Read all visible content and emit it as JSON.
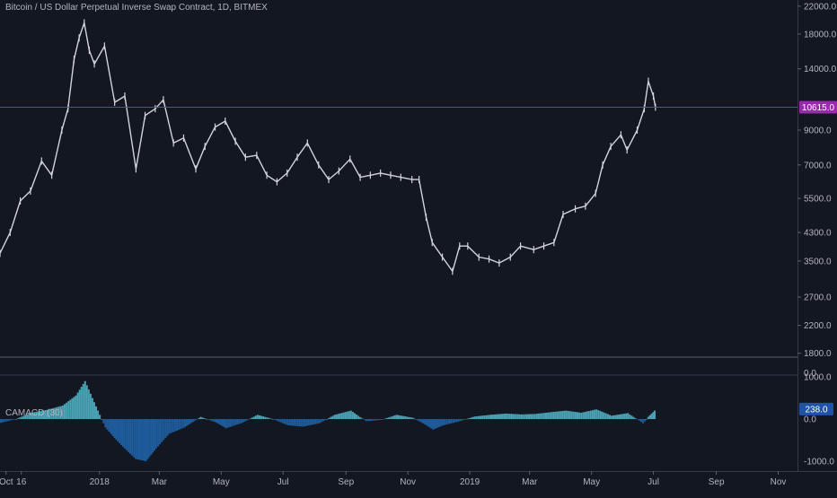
{
  "header": {
    "title": "Bitcoin / US Dollar Perpetual Inverse Swap Contract, 1D, BITMEX"
  },
  "indicator": {
    "label": "CAMACD (30)",
    "last_value_label": "238.0"
  },
  "price_line": {
    "value": 10615.0,
    "label": "10615.0",
    "color": "#9c27b0"
  },
  "colors": {
    "background": "#131722",
    "axis_text": "#b2b5be",
    "candle": "#d1d4dc",
    "hist_positive": "#4aa3b4",
    "hist_negative": "#1e5b9a",
    "hist_light": "#5bb0c0",
    "hist_badge": "#1e53a8"
  },
  "chart_data": [
    {
      "type": "line",
      "scale": "log",
      "ylim": [
        1750,
        23000
      ],
      "xlim": [
        "2017-09-25",
        "2019-11-20"
      ],
      "y_ticks": [
        {
          "value": 22000,
          "label": "22000.0"
        },
        {
          "value": 18000,
          "label": "18000.0"
        },
        {
          "value": 14000,
          "label": "14000.0"
        },
        {
          "value": 9000,
          "label": "9000.0"
        },
        {
          "value": 7000,
          "label": "7000.0"
        },
        {
          "value": 5500,
          "label": "5500.0"
        },
        {
          "value": 4300,
          "label": "4300.0"
        },
        {
          "value": 3500,
          "label": "3500.0"
        },
        {
          "value": 2700,
          "label": "2700.0"
        },
        {
          "value": 2200,
          "label": "2200.0"
        },
        {
          "value": 1800,
          "label": "1800.0"
        }
      ],
      "x_ticks": [
        {
          "date": "2017-10-01",
          "label": "Oct"
        },
        {
          "date": "2017-10-16",
          "label": "16"
        },
        {
          "date": "2018-01-01",
          "label": "2018"
        },
        {
          "date": "2018-03-01",
          "label": "Mar"
        },
        {
          "date": "2018-05-01",
          "label": "May"
        },
        {
          "date": "2018-07-01",
          "label": "Jul"
        },
        {
          "date": "2018-09-01",
          "label": "Sep"
        },
        {
          "date": "2018-11-01",
          "label": "Nov"
        },
        {
          "date": "2019-01-01",
          "label": "2019"
        },
        {
          "date": "2019-03-01",
          "label": "Mar"
        },
        {
          "date": "2019-05-01",
          "label": "May"
        },
        {
          "date": "2019-07-01",
          "label": "Jul"
        },
        {
          "date": "2019-09-01",
          "label": "Sep"
        },
        {
          "date": "2019-11-01",
          "label": "Nov"
        }
      ],
      "series": [
        {
          "x": [
            "2017-09-25",
            "2017-10-05",
            "2017-10-15",
            "2017-10-25",
            "2017-11-05",
            "2017-11-15",
            "2017-11-25",
            "2017-12-01",
            "2017-12-07",
            "2017-12-12",
            "2017-12-17",
            "2017-12-22",
            "2017-12-27",
            "2018-01-06",
            "2018-01-16",
            "2018-01-26",
            "2018-02-06",
            "2018-02-15",
            "2018-02-25",
            "2018-03-05",
            "2018-03-15",
            "2018-03-25",
            "2018-04-06",
            "2018-04-15",
            "2018-04-25",
            "2018-05-05",
            "2018-05-15",
            "2018-05-25",
            "2018-06-05",
            "2018-06-15",
            "2018-06-25",
            "2018-07-05",
            "2018-07-15",
            "2018-07-25",
            "2018-08-05",
            "2018-08-15",
            "2018-08-25",
            "2018-09-05",
            "2018-09-15",
            "2018-09-25",
            "2018-10-05",
            "2018-10-15",
            "2018-10-25",
            "2018-11-05",
            "2018-11-12",
            "2018-11-19",
            "2018-11-25",
            "2018-12-05",
            "2018-12-15",
            "2018-12-22",
            "2018-12-30",
            "2019-01-10",
            "2019-01-20",
            "2019-01-30",
            "2019-02-10",
            "2019-02-20",
            "2019-03-05",
            "2019-03-15",
            "2019-03-25",
            "2019-04-03",
            "2019-04-15",
            "2019-04-25",
            "2019-05-05",
            "2019-05-12",
            "2019-05-20",
            "2019-05-30",
            "2019-06-05",
            "2019-06-15",
            "2019-06-22",
            "2019-06-26",
            "2019-07-01",
            "2019-07-03"
          ],
          "y": [
            3700,
            4300,
            5400,
            5800,
            7200,
            6500,
            9000,
            10500,
            15000,
            17500,
            19500,
            16000,
            14500,
            16500,
            11000,
            11500,
            6800,
            10000,
            10500,
            11200,
            8200,
            8500,
            6800,
            8000,
            9200,
            9600,
            8300,
            7400,
            7500,
            6500,
            6200,
            6600,
            7400,
            8200,
            7000,
            6300,
            6700,
            7300,
            6400,
            6500,
            6600,
            6500,
            6400,
            6300,
            6300,
            4800,
            4000,
            3600,
            3250,
            3900,
            3900,
            3600,
            3550,
            3450,
            3600,
            3900,
            3800,
            3900,
            4000,
            4900,
            5100,
            5200,
            5700,
            7000,
            8000,
            8700,
            7800,
            9000,
            10500,
            12800,
            11500,
            10615
          ]
        }
      ]
    },
    {
      "type": "bar",
      "ylim": [
        -1150,
        1150
      ],
      "y_ticks": [
        {
          "value": 1000,
          "label": "1000.0"
        },
        {
          "value": 0,
          "label": "0.0"
        },
        {
          "value": -1000,
          "label": "-1000.0"
        }
      ],
      "top_label": "0.0",
      "series": [
        {
          "x": [
            "2017-09-25",
            "2017-10-10",
            "2017-10-25",
            "2017-11-10",
            "2017-11-25",
            "2017-12-08",
            "2017-12-17",
            "2017-12-26",
            "2018-01-06",
            "2018-01-15",
            "2018-01-25",
            "2018-02-05",
            "2018-02-15",
            "2018-02-25",
            "2018-03-10",
            "2018-03-25",
            "2018-04-10",
            "2018-04-25",
            "2018-05-05",
            "2018-05-20",
            "2018-06-05",
            "2018-06-20",
            "2018-07-05",
            "2018-07-20",
            "2018-08-05",
            "2018-08-20",
            "2018-09-05",
            "2018-09-20",
            "2018-10-05",
            "2018-10-20",
            "2018-11-05",
            "2018-11-15",
            "2018-11-25",
            "2018-12-05",
            "2018-12-20",
            "2019-01-05",
            "2019-01-20",
            "2019-02-05",
            "2019-02-20",
            "2019-03-05",
            "2019-03-20",
            "2019-04-05",
            "2019-04-20",
            "2019-05-05",
            "2019-05-20",
            "2019-06-05",
            "2019-06-20",
            "2019-06-25",
            "2019-07-03"
          ],
          "y": [
            -90,
            0,
            150,
            220,
            320,
            560,
            900,
            400,
            -200,
            -450,
            -700,
            -950,
            -1000,
            -700,
            -350,
            -200,
            50,
            -80,
            -220,
            -100,
            100,
            0,
            -150,
            -180,
            -100,
            100,
            200,
            -50,
            -20,
            100,
            30,
            -100,
            -250,
            -150,
            -60,
            60,
            100,
            130,
            110,
            120,
            160,
            200,
            150,
            230,
            80,
            140,
            -100,
            50,
            238
          ]
        }
      ]
    }
  ]
}
